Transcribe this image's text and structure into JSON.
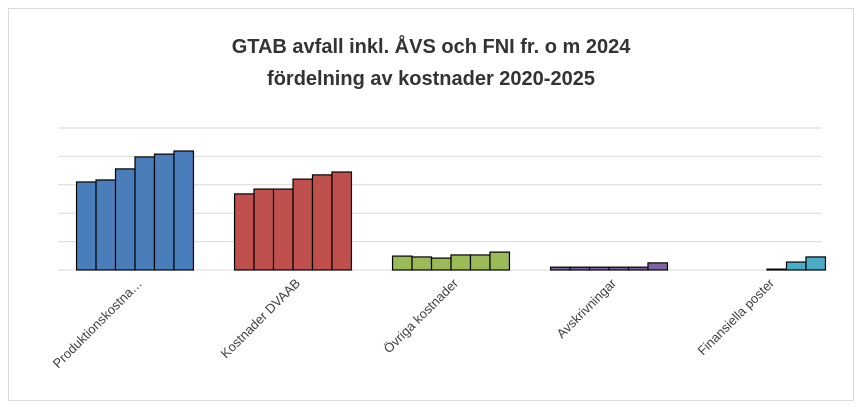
{
  "chart_data": {
    "type": "bar",
    "title": [
      "GTAB avfall inkl. ÅVS och FNI fr. o m 2024",
      "fördelning av kostnader 2020-2025"
    ],
    "categories": [
      "Produktionskostna…",
      "Kostnader DVAAB",
      "Övriga kostnader",
      "Avskrivningar",
      "Finansiella poster"
    ],
    "values": [
      [
        3.1,
        3.17,
        3.56,
        3.98,
        4.08,
        4.19
      ],
      [
        2.68,
        2.85,
        2.85,
        3.2,
        3.35,
        3.45
      ],
      [
        0.49,
        0.46,
        0.42,
        0.53,
        0.53,
        0.63
      ],
      [
        0.1,
        0.1,
        0.1,
        0.1,
        0.1,
        0.25
      ],
      [
        0,
        0,
        0,
        0.03,
        0.28,
        0.46
      ]
    ],
    "colors": [
      "#4a7ebb",
      "#c0504d",
      "#9bbb59",
      "#8064a2",
      "#4bacc6"
    ],
    "ylim": [
      0,
      5
    ],
    "yticks": [
      0,
      1,
      2,
      3,
      4,
      5
    ],
    "grid": true
  }
}
